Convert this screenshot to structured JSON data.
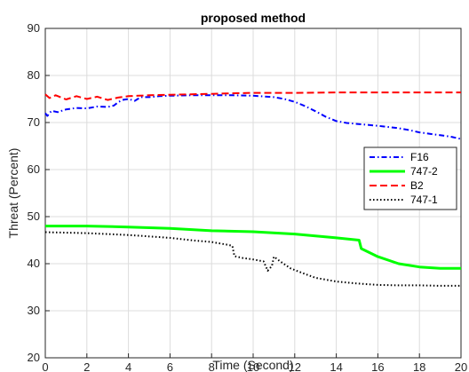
{
  "chart_data": {
    "type": "line",
    "title": "proposed method",
    "xlabel": "Time (Second)",
    "ylabel": "Threat (Percent)",
    "xlim": [
      0,
      20
    ],
    "ylim": [
      20,
      90
    ],
    "xticks": [
      0,
      2,
      4,
      6,
      8,
      10,
      12,
      14,
      16,
      18,
      20
    ],
    "yticks": [
      20,
      30,
      40,
      50,
      60,
      70,
      80,
      90
    ],
    "grid": true,
    "legend_position": "right",
    "series": [
      {
        "name": "F16",
        "color": "#0000ff",
        "dash": "dashdot",
        "x": [
          0,
          0.1,
          0.3,
          0.6,
          1.0,
          1.5,
          2.0,
          2.5,
          3.0,
          3.3,
          3.5,
          3.7,
          4.0,
          4.3,
          4.6,
          5.0,
          5.5,
          6.0,
          7.0,
          8.0,
          9.0,
          10.0,
          11.0,
          11.5,
          12.0,
          12.5,
          13.0,
          13.5,
          14.0,
          14.5,
          15.0,
          16.0,
          17.0,
          17.5,
          18.0,
          18.5,
          19.0,
          19.5,
          20.0
        ],
        "y": [
          72.0,
          71.4,
          72.5,
          72.2,
          72.8,
          73.1,
          73.0,
          73.4,
          73.3,
          73.6,
          74.3,
          74.8,
          75.0,
          74.6,
          75.4,
          75.4,
          75.6,
          75.7,
          75.8,
          75.8,
          75.8,
          75.7,
          75.4,
          75.0,
          74.4,
          73.5,
          72.4,
          71.2,
          70.3,
          69.9,
          69.7,
          69.3,
          68.8,
          68.4,
          67.9,
          67.6,
          67.3,
          67.0,
          66.5
        ]
      },
      {
        "name": "747-2",
        "color": "#00ff00",
        "dash": "solid",
        "x": [
          0,
          2,
          4,
          6,
          8,
          10,
          12,
          13,
          14,
          15.1,
          15.2,
          16,
          17,
          18,
          19,
          20
        ],
        "y": [
          48.0,
          48.0,
          47.8,
          47.5,
          47.0,
          46.8,
          46.3,
          45.9,
          45.5,
          45.0,
          43.2,
          41.5,
          40.0,
          39.3,
          39.0,
          39.0
        ],
        "data_note": ""
      },
      {
        "name": "B2",
        "color": "#ff0000",
        "dash": "dashed",
        "x": [
          0,
          0.2,
          0.5,
          1.0,
          1.5,
          2.0,
          2.5,
          3.0,
          3.5,
          4.0,
          4.5,
          5.0,
          6.0,
          7.0,
          8.0,
          9.0,
          10.0,
          12.0,
          14.0,
          16.0,
          18.0,
          20.0
        ],
        "y": [
          76.0,
          75.2,
          75.8,
          74.9,
          75.6,
          75.0,
          75.5,
          74.8,
          75.3,
          75.6,
          75.7,
          75.8,
          75.9,
          76.0,
          76.1,
          76.2,
          76.3,
          76.3,
          76.4,
          76.4,
          76.4,
          76.4
        ]
      },
      {
        "name": "747-1",
        "color": "#000000",
        "dash": "dotted",
        "x": [
          0,
          2,
          4,
          6,
          7,
          8,
          8.8,
          9.0,
          9.1,
          9.5,
          10.0,
          10.5,
          10.7,
          10.9,
          11.0,
          11.3,
          11.8,
          12.5,
          13.0,
          14.0,
          15.0,
          16.0,
          17.0,
          18.0,
          19.0,
          20.0
        ],
        "y": [
          46.7,
          46.5,
          46.1,
          45.5,
          45.0,
          44.6,
          44.0,
          43.8,
          41.6,
          41.2,
          40.9,
          40.5,
          38.5,
          39.5,
          41.5,
          40.5,
          39.0,
          37.8,
          37.0,
          36.2,
          35.8,
          35.5,
          35.4,
          35.4,
          35.3,
          35.3
        ]
      }
    ]
  }
}
